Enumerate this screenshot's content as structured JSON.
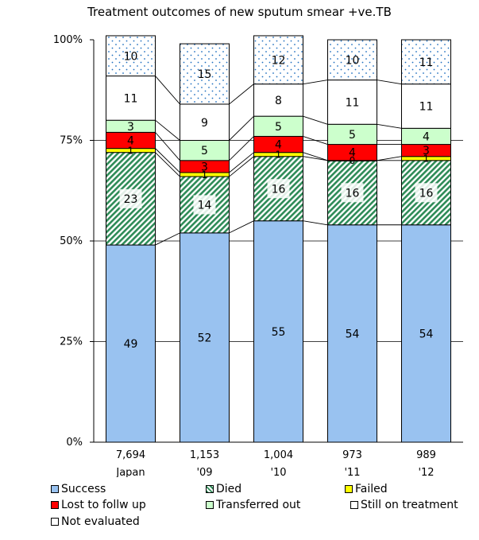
{
  "chart_data": {
    "type": "bar",
    "stacked": true,
    "title": "Treatment outcomes of new sputum smear +ve.TB",
    "categories": [
      "Japan",
      "'09",
      "'10",
      "'11",
      "'12"
    ],
    "counts": [
      "7,694",
      "1,153",
      "1,004",
      "973",
      "989"
    ],
    "ylim": [
      0,
      100
    ],
    "yticks": [
      "0%",
      "25%",
      "50%",
      "75%",
      "100%"
    ],
    "series": [
      {
        "name": "Success",
        "values": [
          49,
          52,
          55,
          54,
          54
        ],
        "color": "#99c2f0",
        "pattern": "solid"
      },
      {
        "name": "Died",
        "values": [
          23,
          14,
          16,
          16,
          16
        ],
        "color": "#2e8b57",
        "pattern": "hatch"
      },
      {
        "name": "Failed",
        "values": [
          1,
          1,
          1,
          0,
          1
        ],
        "color": "#ffff00",
        "pattern": "solid"
      },
      {
        "name": "Lost to follw up",
        "values": [
          4,
          3,
          4,
          4,
          3
        ],
        "color": "#ff0000",
        "pattern": "solid"
      },
      {
        "name": "Transferred out",
        "values": [
          3,
          5,
          5,
          5,
          4
        ],
        "color": "#ccffcc",
        "pattern": "solid"
      },
      {
        "name": "Still on treatment",
        "values": [
          11,
          9,
          8,
          11,
          11
        ],
        "color": "#ffffff",
        "pattern": "solid"
      },
      {
        "name": "Not evaluated",
        "values": [
          10,
          15,
          12,
          10,
          11
        ],
        "color": "#ffffff",
        "pattern": "dots"
      }
    ],
    "legend_position": "bottom",
    "grid": true
  }
}
